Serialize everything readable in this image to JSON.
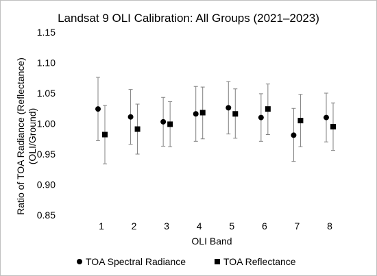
{
  "chart_data": {
    "type": "scatter",
    "title": "Landsat 9 OLI Calibration: All Groups (2021–2023)",
    "xlabel": "OLI Band",
    "ylabel_line1": "Ratio of TOA Radiance (Reflectance)",
    "ylabel_line2": "(OLI/Ground)",
    "categories": [
      "1",
      "2",
      "3",
      "4",
      "5",
      "6",
      "7",
      "8"
    ],
    "ylim": [
      0.85,
      1.15
    ],
    "yticks": [
      "0.85",
      "0.90",
      "0.95",
      "1.00",
      "1.05",
      "1.10",
      "1.15"
    ],
    "grid": false,
    "legend_position": "bottom",
    "series": [
      {
        "name": "TOA Spectral Radiance",
        "marker": "circle",
        "color": "#000000",
        "values": [
          1.024,
          1.011,
          1.003,
          1.016,
          1.026,
          1.01,
          0.981,
          1.01
        ],
        "err_low": [
          0.972,
          0.966,
          0.963,
          0.971,
          0.983,
          0.971,
          0.938,
          0.97
        ],
        "err_high": [
          1.076,
          1.056,
          1.043,
          1.061,
          1.069,
          1.049,
          1.025,
          1.05
        ]
      },
      {
        "name": "TOA Reflectance",
        "marker": "square",
        "color": "#000000",
        "values": [
          0.982,
          0.991,
          0.999,
          1.018,
          1.016,
          1.024,
          1.005,
          0.995
        ],
        "err_low": [
          0.934,
          0.95,
          0.962,
          0.975,
          0.976,
          0.982,
          0.962,
          0.956
        ],
        "err_high": [
          1.03,
          1.032,
          1.036,
          1.06,
          1.057,
          1.065,
          1.048,
          1.034
        ]
      }
    ]
  }
}
